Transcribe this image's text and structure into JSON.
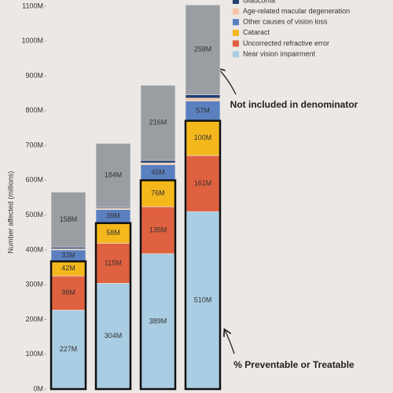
{
  "chart_data": {
    "type": "stacked_bar",
    "y_label": "Number affected (millions)",
    "categories": [
      null,
      null,
      null,
      null
    ],
    "series": [
      {
        "name": "Near vision impairment",
        "color": "#a9cde2",
        "values": [
          227,
          304,
          389,
          510
        ],
        "value_labels": [
          "227M",
          "304M",
          "389M",
          "510M"
        ]
      },
      {
        "name": "Uncorrected refractive error",
        "color": "#e0613f",
        "values": [
          98,
          115,
          135,
          161
        ],
        "value_labels": [
          "98M",
          "115M",
          "135M",
          "161M"
        ]
      },
      {
        "name": "Cataract",
        "color": "#f5b81c",
        "values": [
          42,
          58,
          76,
          100
        ],
        "value_labels": [
          "42M",
          "58M",
          "76M",
          "100M"
        ]
      },
      {
        "name": "Other causes of vision loss",
        "color": "#5b80c0",
        "values": [
          33,
          39,
          45,
          57
        ],
        "value_labels": [
          "33M",
          "39M",
          "45M",
          "57M"
        ]
      },
      {
        "name": "Age-related macular degeneration",
        "color": "#f6c6a6",
        "values": [
          3,
          3,
          5,
          8
        ]
      },
      {
        "name": "Glaucoma",
        "color": "#24406e",
        "values": [
          5,
          3,
          7,
          10
        ]
      },
      {
        "color": "#9a9ea3",
        "values": [
          158,
          184,
          216,
          258
        ],
        "value_labels": [
          "158M",
          "184M",
          "216M",
          "258M"
        ]
      }
    ],
    "ylim": [
      0,
      1100
    ],
    "yticks": [
      {
        "value": 0,
        "label": "0M"
      },
      {
        "value": 100,
        "label": "100M"
      },
      {
        "value": 200,
        "label": "200M"
      },
      {
        "value": 300,
        "label": "300M"
      },
      {
        "value": 400,
        "label": "400M"
      },
      {
        "value": 500,
        "label": "500M"
      },
      {
        "value": 600,
        "label": "600M"
      },
      {
        "value": 700,
        "label": "700M"
      },
      {
        "value": 800,
        "label": "800M"
      },
      {
        "value": 900,
        "label": "900M"
      },
      {
        "value": 1000,
        "label": "1000M"
      },
      {
        "value": 1100,
        "label": "1100M"
      }
    ],
    "grid": false,
    "legend": "top-right",
    "annotations": [
      "Not included in denominator",
      "% Preventable or Treatable"
    ]
  }
}
